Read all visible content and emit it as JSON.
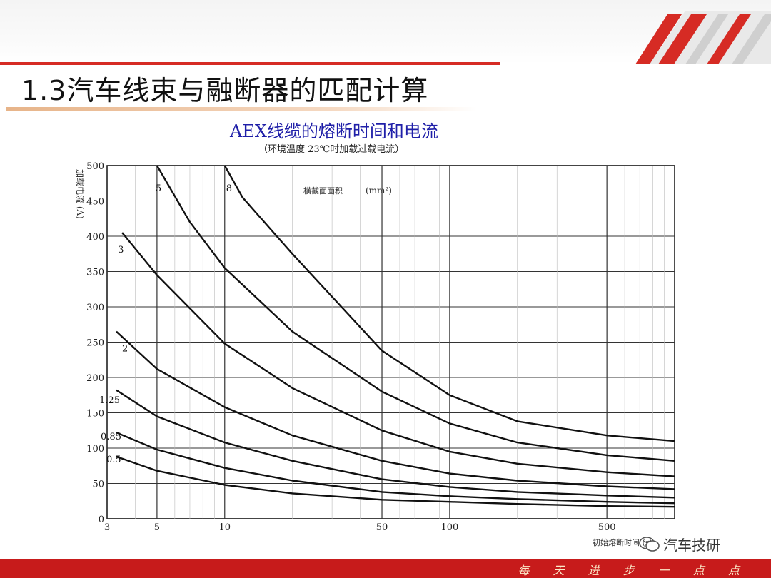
{
  "slide": {
    "title": "1.3汽车线束与融断器的匹配计算",
    "slogan": "每 天 进 步 一 点 点",
    "watermark": "汽车技研",
    "accent_color": "#d62b24",
    "watermark_icon": "wechat-icon"
  },
  "chart_data": {
    "type": "line",
    "title": "AEX线缆的熔断时间和电流",
    "subtitle": "（环境温度 23℃时加载过载电流）",
    "xlabel": "初始熔断时间 (s)",
    "ylabel": "加载电流 (A)",
    "legend_title": "横截面面积",
    "legend_unit": "(mm²)",
    "x_scale": "log",
    "xlim": [
      3,
      1000
    ],
    "ylim": [
      0,
      500
    ],
    "x_ticks": [
      3,
      5,
      10,
      50,
      100,
      500
    ],
    "y_ticks": [
      0,
      50,
      100,
      150,
      200,
      250,
      300,
      350,
      400,
      450,
      500
    ],
    "grid": true,
    "series": [
      {
        "name": "0.5",
        "x": [
          3.3,
          5,
          10,
          20,
          50,
          100,
          200,
          500,
          1000
        ],
        "y": [
          88,
          68,
          48,
          36,
          27,
          24,
          21,
          18,
          17
        ]
      },
      {
        "name": "0.85",
        "x": [
          3.3,
          5,
          10,
          20,
          50,
          100,
          200,
          500,
          1000
        ],
        "y": [
          122,
          98,
          72,
          54,
          38,
          32,
          28,
          24,
          22
        ]
      },
      {
        "name": "1.25",
        "x": [
          3.3,
          5,
          10,
          20,
          50,
          100,
          200,
          500,
          1000
        ],
        "y": [
          182,
          145,
          108,
          82,
          56,
          45,
          38,
          33,
          30
        ]
      },
      {
        "name": "2",
        "x": [
          3.3,
          5,
          10,
          20,
          50,
          100,
          200,
          500,
          1000
        ],
        "y": [
          265,
          212,
          158,
          118,
          82,
          64,
          54,
          46,
          42
        ]
      },
      {
        "name": "3",
        "x": [
          3.5,
          5,
          10,
          20,
          50,
          100,
          200,
          500,
          1000
        ],
        "y": [
          405,
          345,
          248,
          185,
          125,
          95,
          78,
          66,
          60
        ]
      },
      {
        "name": "5",
        "x": [
          5,
          7,
          10,
          20,
          50,
          100,
          200,
          500,
          1000
        ],
        "y": [
          500,
          420,
          355,
          265,
          180,
          135,
          108,
          90,
          82
        ]
      },
      {
        "name": "8",
        "x": [
          10,
          12,
          20,
          50,
          100,
          200,
          500,
          1000
        ],
        "y": [
          500,
          455,
          375,
          238,
          175,
          138,
          118,
          110
        ]
      }
    ]
  }
}
